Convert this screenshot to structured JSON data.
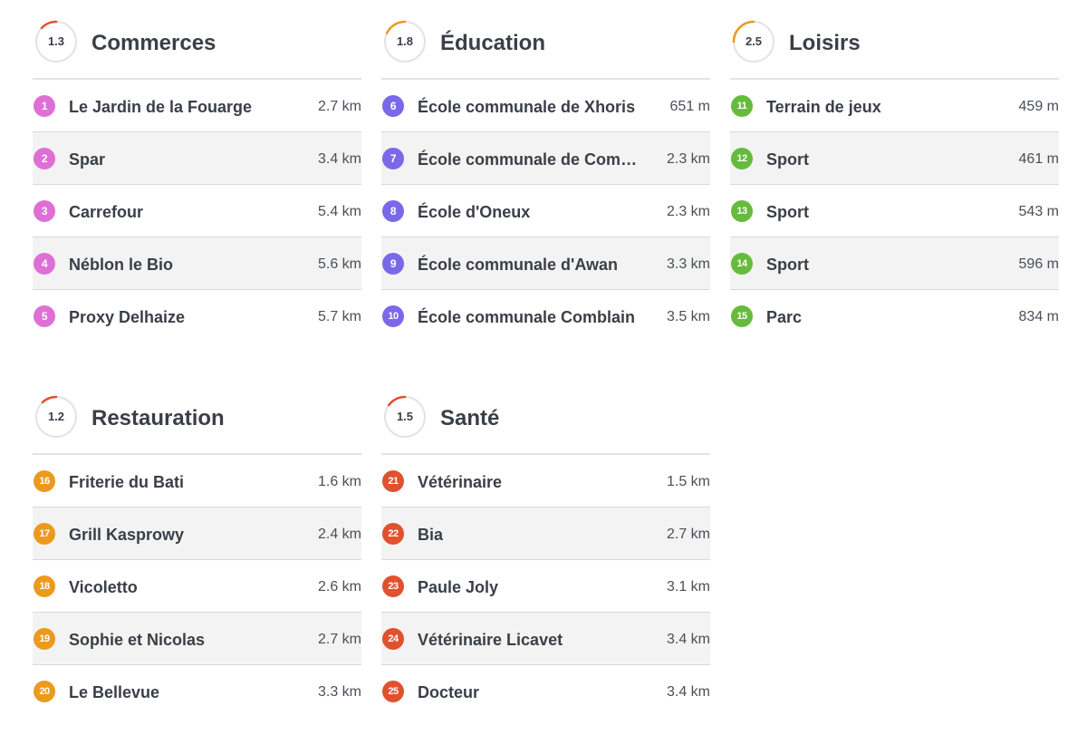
{
  "colors": {
    "commerces": "#de6fd6",
    "education": "#7b68e8",
    "loisirs": "#66bb3c",
    "restauration": "#ec9a1e",
    "sante": "#e0512f",
    "ring_track": "#e3e3e3"
  },
  "sections": [
    {
      "id": "commerces",
      "score": "1.3",
      "score_fraction": 0.13,
      "ring_color": "#e0512f",
      "title": "Commerces",
      "badge_color": "#de6fd6",
      "items": [
        {
          "num": "1",
          "name": "Le Jardin de la Fouarge",
          "distance": "2.7 km"
        },
        {
          "num": "2",
          "name": "Spar",
          "distance": "3.4 km"
        },
        {
          "num": "3",
          "name": "Carrefour",
          "distance": "5.4 km"
        },
        {
          "num": "4",
          "name": "Néblon le Bio",
          "distance": "5.6 km"
        },
        {
          "num": "5",
          "name": "Proxy Delhaize",
          "distance": "5.7 km"
        }
      ]
    },
    {
      "id": "education",
      "score": "1.8",
      "score_fraction": 0.18,
      "ring_color": "#ec9a1e",
      "title": "Éducation",
      "badge_color": "#7b68e8",
      "items": [
        {
          "num": "6",
          "name": "École communale de Xhoris",
          "distance": "651 m"
        },
        {
          "num": "7",
          "name": "École communale de Comblain-au-Pont",
          "distance": "2.3 km"
        },
        {
          "num": "8",
          "name": "École d'Oneux",
          "distance": "2.3 km"
        },
        {
          "num": "9",
          "name": "École communale d'Awan",
          "distance": "3.3 km"
        },
        {
          "num": "10",
          "name": "École communale Comblain",
          "distance": "3.5 km"
        }
      ]
    },
    {
      "id": "loisirs",
      "score": "2.5",
      "score_fraction": 0.25,
      "ring_color": "#ec9a1e",
      "title": "Loisirs",
      "badge_color": "#66bb3c",
      "items": [
        {
          "num": "11",
          "name": "Terrain de jeux",
          "distance": "459 m"
        },
        {
          "num": "12",
          "name": "Sport",
          "distance": "461 m"
        },
        {
          "num": "13",
          "name": "Sport",
          "distance": "543 m"
        },
        {
          "num": "14",
          "name": "Sport",
          "distance": "596 m"
        },
        {
          "num": "15",
          "name": "Parc",
          "distance": "834 m"
        }
      ]
    },
    {
      "id": "restauration",
      "score": "1.2",
      "score_fraction": 0.12,
      "ring_color": "#e0512f",
      "title": "Restauration",
      "badge_color": "#ec9a1e",
      "items": [
        {
          "num": "16",
          "name": "Friterie du Bati",
          "distance": "1.6 km"
        },
        {
          "num": "17",
          "name": "Grill Kasprowy",
          "distance": "2.4 km"
        },
        {
          "num": "18",
          "name": "Vicoletto",
          "distance": "2.6 km"
        },
        {
          "num": "19",
          "name": "Sophie et Nicolas",
          "distance": "2.7 km"
        },
        {
          "num": "20",
          "name": "Le Bellevue",
          "distance": "3.3 km"
        }
      ]
    },
    {
      "id": "sante",
      "score": "1.5",
      "score_fraction": 0.15,
      "ring_color": "#e0512f",
      "title": "Santé",
      "badge_color": "#e0512f",
      "items": [
        {
          "num": "21",
          "name": "Vétérinaire",
          "distance": "1.5 km"
        },
        {
          "num": "22",
          "name": "Bia",
          "distance": "2.7 km"
        },
        {
          "num": "23",
          "name": "Paule Joly",
          "distance": "3.1 km"
        },
        {
          "num": "24",
          "name": "Vétérinaire Licavet",
          "distance": "3.4 km"
        },
        {
          "num": "25",
          "name": "Docteur",
          "distance": "3.4 km"
        }
      ]
    }
  ]
}
